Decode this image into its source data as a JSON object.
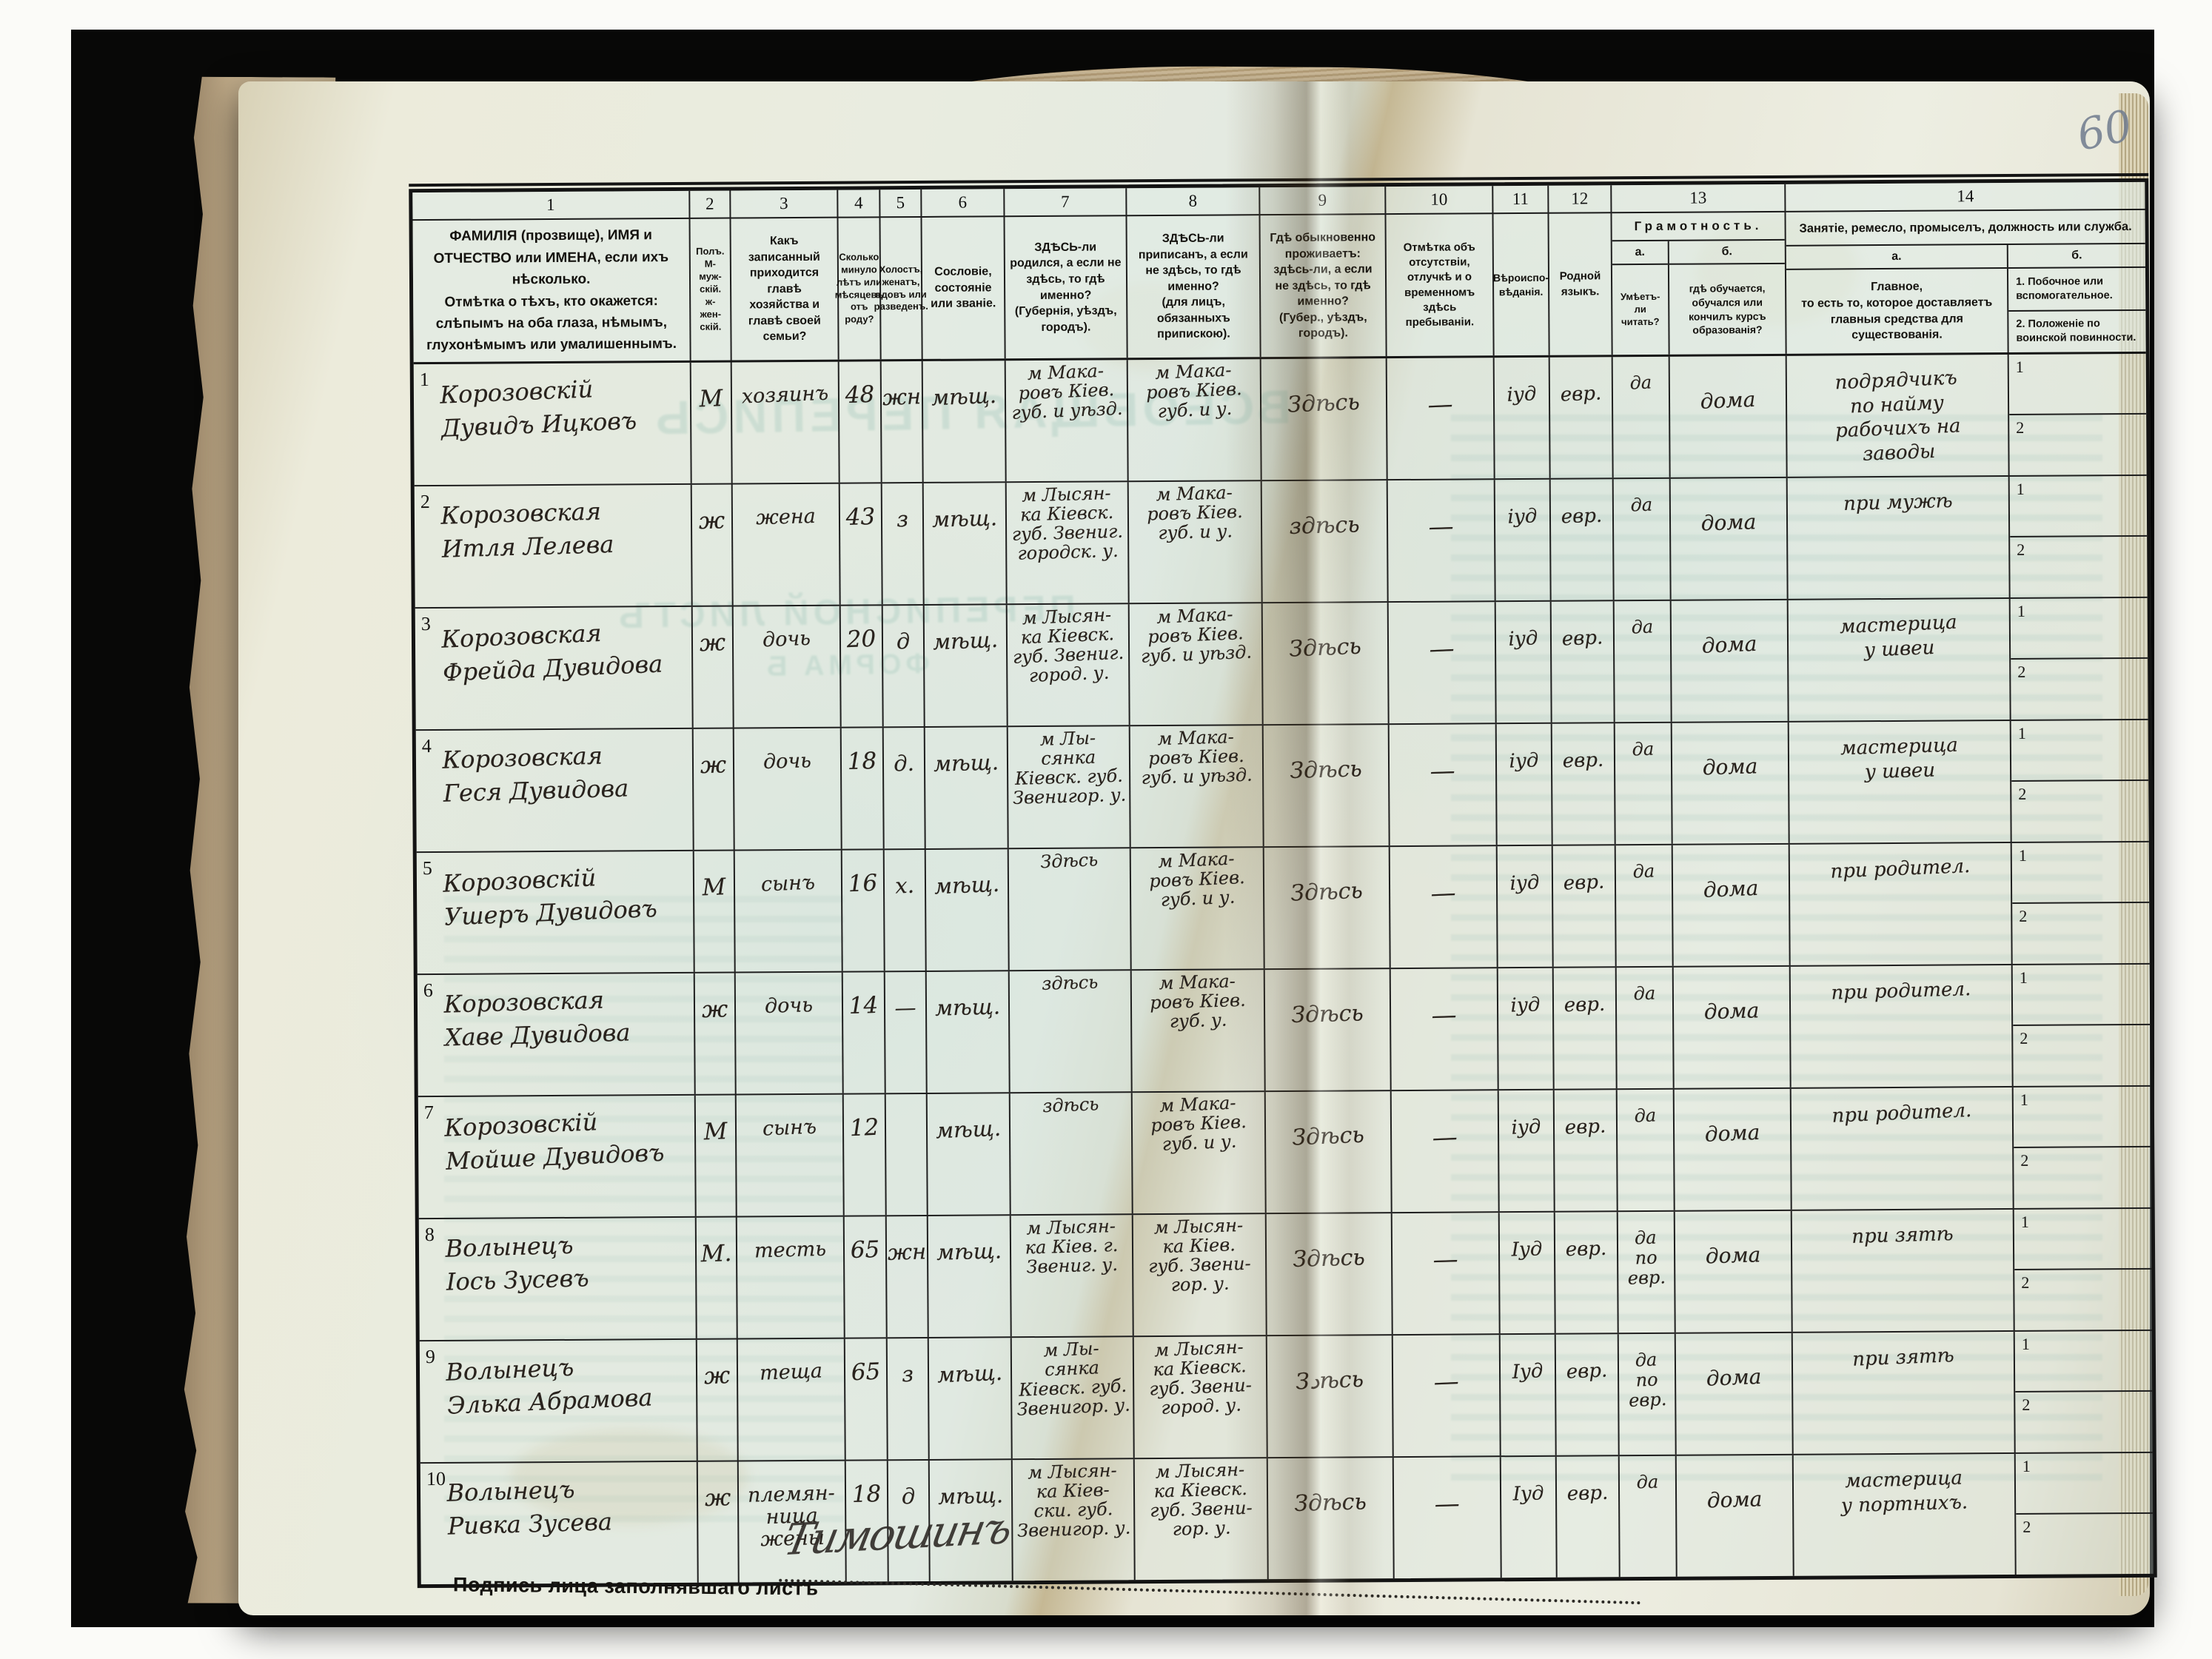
{
  "page": {
    "number": "60"
  },
  "footer": {
    "label": "Подпись лица заполнявшаго листъ",
    "signature": "Тимошинъ"
  },
  "ghost": {
    "g1": "ВСЕОБЩАЯ ПЕРЕПИСЬ",
    "g2": "ПЕРЕПИСНОЙ ЛИСТЪ",
    "g3": "ФОРМА Б"
  },
  "table": {
    "nums": [
      "1",
      "2",
      "3",
      "4",
      "5",
      "6",
      "7",
      "8",
      "9",
      "10",
      "11",
      "12",
      "13",
      "14"
    ],
    "h1": "ФАМИЛІЯ (прозвище), ИМЯ и ОТЧЕСТВО или ИМЕНА, если ихъ нѣсколько.\nОтмѣтка о тѣхъ, кто окажется: слѣпымъ на оба глаза, нѣмымъ, глухонѣмымъ или умалишеннымъ.",
    "h2": "Полъ.\nМ-муж-\nскій.\nж-жен-\nскій.",
    "h3": "Какъ записанный приходится главѣ хозяйства и главѣ своей семьи?",
    "h4": "Сколько минуло лѣтъ или мѣсяцевъ отъ роду?",
    "h5": "Холостъ, женатъ, вдовъ или разведенъ.",
    "h6": "Сословіе, состояніе или званіе.",
    "h7": "ЗДѢСЬ-ли родился, а если не здѣсь, то гдѣ именно?\n(Губернія, уѣздъ, городъ).",
    "h8": "ЗДѢСЬ-ли приписанъ, а если не здѣсь, то гдѣ именно?\n(для лицъ, обязанныхъ припискою).",
    "h9": "Гдѣ обыкновенно проживаетъ: здѣсь-ли, а если не здѣсь, то гдѣ именно?\n(Губер., уѣздъ, городъ).",
    "h10": "Отмѣтка объ отсутствіи, отлучкѣ и о временномъ здѣсь пребываніи.",
    "h11": "Вѣроиспо-\nвѣданія.",
    "h12": "Родной языкъ.",
    "h13": "Грамотность.",
    "h13a_label": "а.",
    "h13b_label": "б.",
    "h13a": "Умѣетъ-ли читать?",
    "h13b": "гдѣ обучается, обучался или кончилъ курсъ образованія?",
    "h14": "Занятіе, ремесло, промыселъ, должность или служба.",
    "h14a_label": "а.",
    "h14b_label": "б.",
    "h14a": "Главное,\nто есть то, которое доставляетъ главныя средства для существованія.",
    "h14b1": "1.  Побочное или вспомогательное.",
    "h14b2": "2.  Положеніе по воинской повинности.",
    "side1": "1",
    "side2": "2"
  },
  "rows": [
    {
      "no": "1",
      "name": "Корозовскій\nДувидъ Ицковъ",
      "sex": "М",
      "relation": "хозяинъ",
      "age": "48",
      "marital": "жн",
      "estate": "мѣщ.",
      "born": "м Мака-\nровъ Кіев.\nгуб. и уѣзд.",
      "registered": "м Мака-\nровъ Кіев.\nгуб. и у.",
      "lives": "Здѣсь",
      "absence": "—",
      "religion": "іуд",
      "language": "евр.",
      "reads": "да",
      "study": "дома",
      "occupation": "подрядчикъ\nпо найму\nрабочихъ на\nзаводы"
    },
    {
      "no": "2",
      "name": "Корозовская\nИтля Лелева",
      "sex": "ж",
      "relation": "жена",
      "age": "43",
      "marital": "з",
      "estate": "мѣщ.",
      "born": "м Лысян-\nка Кіевск.\nгуб. Звениг.\nгородск. у.",
      "registered": "м Мака-\nровъ Кіев.\nгуб. и у.",
      "lives": "здѣсь",
      "absence": "—",
      "religion": "іуд",
      "language": "евр.",
      "reads": "да",
      "study": "дома",
      "occupation": "при мужѣ"
    },
    {
      "no": "3",
      "name": "Корозовская\nФрейда Дувидова",
      "sex": "ж",
      "relation": "дочь",
      "age": "20",
      "marital": "д",
      "estate": "мѣщ.",
      "born": "м Лысян-\nка Кіевск.\nгуб. Звениг.\nгород. у.",
      "registered": "м Мака-\nровъ Кіев.\nгуб. и уѣзд.",
      "lives": "Здѣсь",
      "absence": "—",
      "religion": "іуд",
      "language": "евр.",
      "reads": "да",
      "study": "дома",
      "occupation": "мастерица\nу швеи"
    },
    {
      "no": "4",
      "name": "Корозовская\nГеся Дувидова",
      "sex": "ж",
      "relation": "дочь",
      "age": "18",
      "marital": "д.",
      "estate": "мѣщ.",
      "born": "м Лы-\nсянка\nКіевск. губ.\nЗвенигор. у.",
      "registered": "м Мака-\nровъ Кіев.\nгуб. и уѣзд.",
      "lives": "Здѣсь",
      "absence": "—",
      "religion": "іуд",
      "language": "евр.",
      "reads": "да",
      "study": "дома",
      "occupation": "мастерица\nу швеи"
    },
    {
      "no": "5",
      "name": "Корозовскій\nУшеръ Дувидовъ",
      "sex": "М",
      "relation": "сынъ",
      "age": "16",
      "marital": "х.",
      "estate": "мѣщ.",
      "born": "Здѣсь",
      "registered": "м Мака-\nровъ Кіев.\nгуб. и у.",
      "lives": "Здѣсь",
      "absence": "—",
      "religion": "іуд",
      "language": "евр.",
      "reads": "да",
      "study": "дома",
      "occupation": "при родител."
    },
    {
      "no": "6",
      "name": "Корозовская\nХаве Дувидова",
      "sex": "ж",
      "relation": "дочь",
      "age": "14",
      "marital": "—",
      "estate": "мѣщ.",
      "born": "здѣсь",
      "registered": "м Мака-\nровъ Кіев.\nгуб. у.",
      "lives": "Здѣсь",
      "absence": "—",
      "religion": "іуд",
      "language": "евр.",
      "reads": "да",
      "study": "дома",
      "occupation": "при родител."
    },
    {
      "no": "7",
      "name": "Корозовскій\nМойше Дувидовъ",
      "sex": "М",
      "relation": "сынъ",
      "age": "12",
      "marital": "",
      "estate": "мѣщ.",
      "born": "здѣсь",
      "registered": "м Мака-\nровъ Кіев.\nгуб. и у.",
      "lives": "Здѣсь",
      "absence": "—",
      "religion": "іуд",
      "language": "евр.",
      "reads": "да",
      "study": "дома",
      "occupation": "при родител."
    },
    {
      "no": "8",
      "name": "Волынецъ\nІось Зусевъ",
      "sex": "М.",
      "relation": "тесть",
      "age": "65",
      "marital": "жн",
      "estate": "мѣщ.",
      "born": "м Лысян-\nка Кіев. г.\nЗвениг. у.",
      "registered": "м Лысян-\nка Кіев.\nгуб. Звени-\nгор. у.",
      "lives": "Здѣсь",
      "absence": "—",
      "religion": "Іуд",
      "language": "евр.",
      "reads": "да\nпо\nевр.",
      "study": "дома",
      "occupation": "при зятѣ"
    },
    {
      "no": "9",
      "name": "Волынецъ\nЭлька Абрамова",
      "sex": "ж",
      "relation": "теща",
      "age": "65",
      "marital": "з",
      "estate": "мѣщ.",
      "born": "м Лы-\nсянка\nКіевск. губ.\nЗвенигор. у.",
      "registered": "м Лысян-\nка Кіевск.\nгуб. Звени-\nгород. у.",
      "lives": "Зدѣсь",
      "absence": "—",
      "religion": "Іуд",
      "language": "евр.",
      "reads": "да\nпо\nевр.",
      "study": "дома",
      "occupation": "при зятѣ"
    },
    {
      "no": "10",
      "name": "Волынецъ\nРивка Зусева",
      "sex": "ж",
      "relation": "племян-\nница\nжены",
      "age": "18",
      "marital": "д",
      "estate": "мѣщ.",
      "born": "м Лысян-\nка Кіев-\nски. губ.\nЗвенигор. у.",
      "registered": "м Лысян-\nка Кіевск.\nгуб. Звени-\nгор. у.",
      "lives": "Здѣсь",
      "absence": "—",
      "religion": "Іуд",
      "language": "евр.",
      "reads": "да",
      "study": "дома",
      "occupation": "мастерица\nу портнихъ."
    }
  ]
}
